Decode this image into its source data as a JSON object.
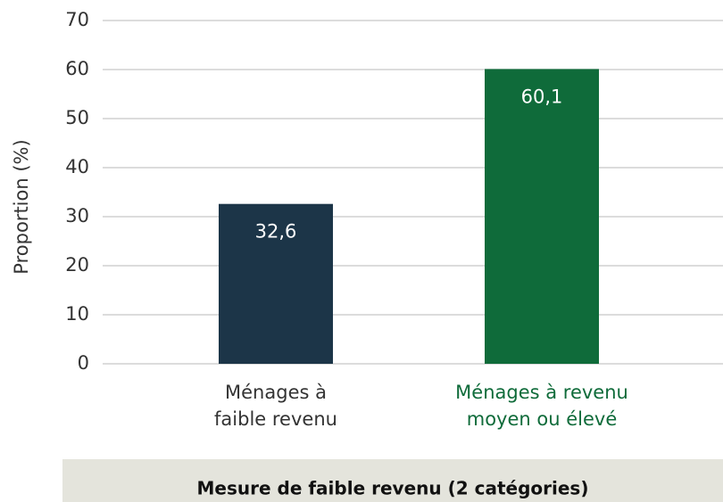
{
  "chart_data": {
    "type": "bar",
    "categories": [
      "Ménages à\nfaible revenu",
      "Ménages à revenu\nmoyen ou élevé"
    ],
    "values": [
      32.6,
      60.1
    ],
    "value_labels": [
      "32,6",
      "60,1"
    ],
    "colors": [
      "#1c3548",
      "#0f6b3a"
    ],
    "y_label": "Proportion (%)",
    "x_label": "Mesure de faible revenu (2 catégories)",
    "ylim": [
      0,
      70
    ],
    "yticks": [
      0,
      10,
      20,
      30,
      40,
      50,
      60,
      70
    ],
    "grid": true
  }
}
